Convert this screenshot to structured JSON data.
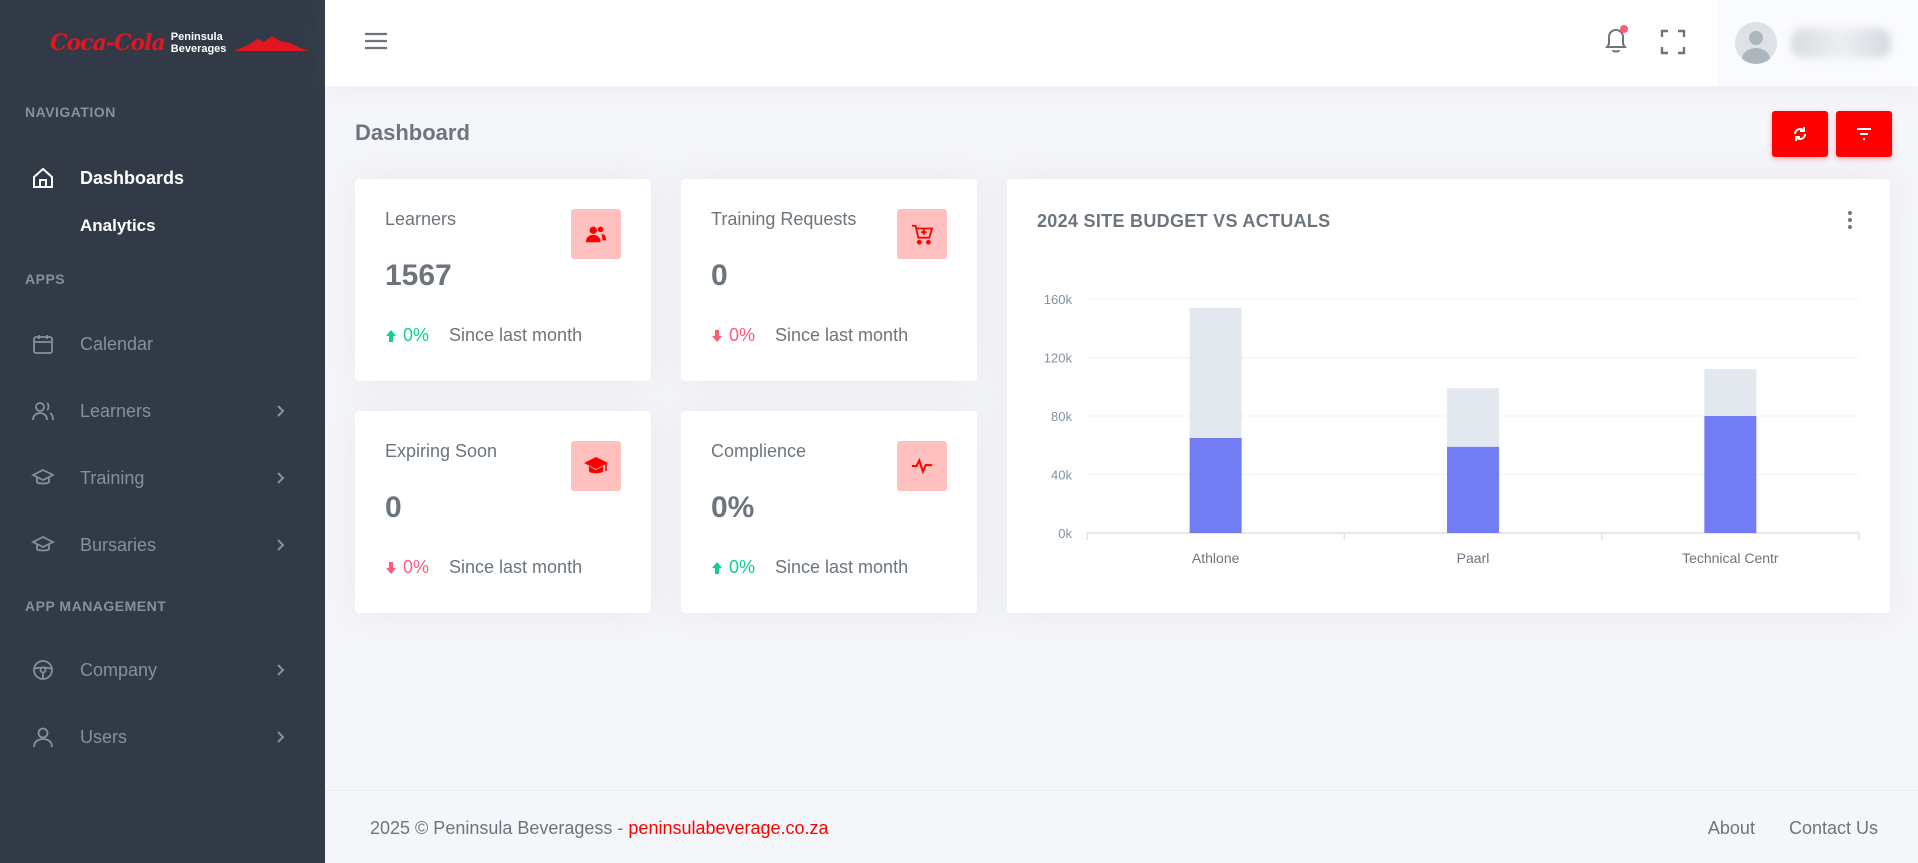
{
  "brand": {
    "logo_script": "Coca-Cola",
    "logo_line1": "Peninsula",
    "logo_line2": "Beverages",
    "accent": "#ff0000"
  },
  "sidebar": {
    "sections": {
      "navigation": "NAVIGATION",
      "apps": "APPS",
      "app_management": "APP MANAGEMENT"
    },
    "items": [
      {
        "label": "Dashboards",
        "icon": "home-icon",
        "active": true
      },
      {
        "label": "Analytics",
        "sub": true
      },
      {
        "label": "Calendar",
        "icon": "calendar-icon"
      },
      {
        "label": "Learners",
        "icon": "users-icon"
      },
      {
        "label": "Training",
        "icon": "graduation-cap-icon"
      },
      {
        "label": "Bursaries",
        "icon": "graduation-cap-icon"
      },
      {
        "label": "Company",
        "icon": "steering-wheel-icon"
      },
      {
        "label": "Users",
        "icon": "user-icon"
      }
    ]
  },
  "header": {
    "page_title": "Dashboard"
  },
  "stats": [
    {
      "label": "Learners",
      "value": "1567",
      "trend": "up",
      "pct": "0%",
      "since": "Since last month",
      "icon": "users-icon"
    },
    {
      "label": "Training Requests",
      "value": "0",
      "trend": "down",
      "pct": "0%",
      "since": "Since last month",
      "icon": "cart-plus-icon"
    },
    {
      "label": "Expiring Soon",
      "value": "0",
      "trend": "down",
      "pct": "0%",
      "since": "Since last month",
      "icon": "graduation-cap-icon"
    },
    {
      "label": "Complience",
      "value": "0%",
      "trend": "up",
      "pct": "0%",
      "since": "Since last month",
      "icon": "pulse-icon"
    }
  ],
  "chart": {
    "title": "2024 SITE BUDGET VS ACTUALS"
  },
  "chart_data": {
    "type": "bar",
    "stacked": true,
    "categories": [
      "Athlone",
      "Paarl",
      "Technical Centr"
    ],
    "series": [
      {
        "values": [
          65000,
          59000,
          80000
        ],
        "color": "#727cf5"
      },
      {
        "values": [
          89000,
          40000,
          32000
        ],
        "color": "#e3e7ee"
      }
    ],
    "yticks": [
      "0k",
      "40k",
      "80k",
      "120k",
      "160k"
    ],
    "ylim": [
      0,
      160000
    ],
    "grid": true,
    "legend": "none"
  },
  "footer": {
    "copyright": "2025 © Peninsula Beveragess - ",
    "link": "peninsulabeverage.co.za",
    "about": "About",
    "contact": "Contact Us"
  }
}
